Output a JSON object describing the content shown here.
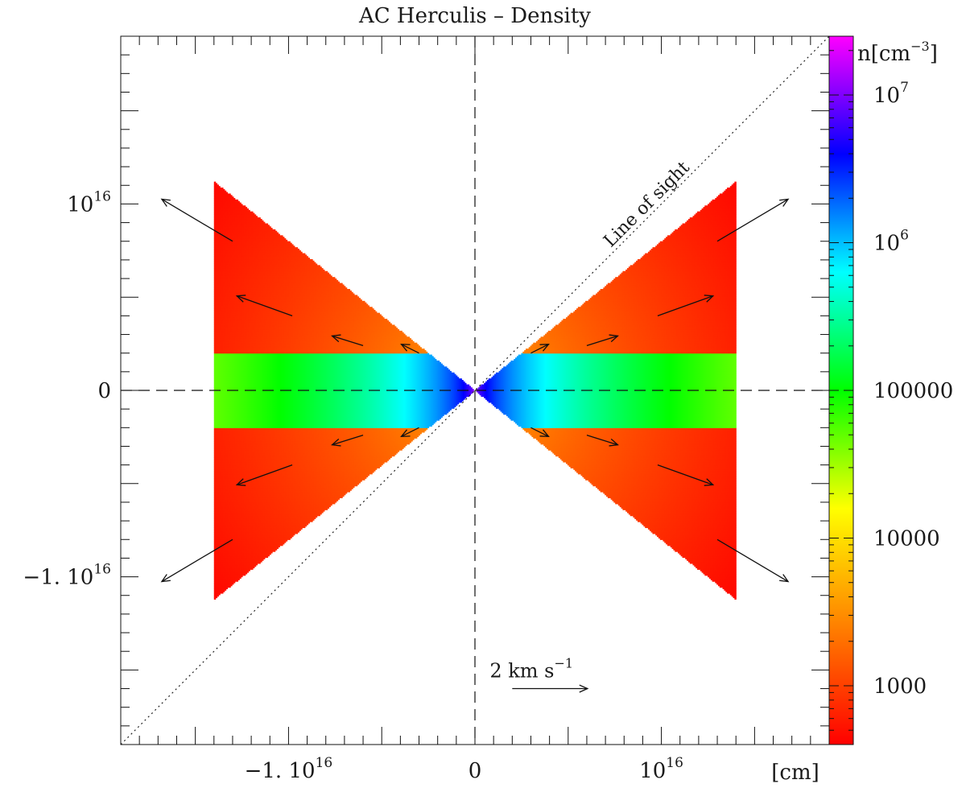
{
  "chart_data": {
    "type": "heatmap",
    "title": "AC Herculis – Density",
    "xlabel": "[cm]",
    "ylabel": "",
    "xlim": [
      -1.9e+16,
      1.9e+16
    ],
    "ylim": [
      -1.9e+16,
      1.9e+16
    ],
    "x_ticks": [
      {
        "value": -1e+16,
        "label": "−1. 10",
        "exp": "16"
      },
      {
        "value": 0,
        "label": "0",
        "exp": ""
      },
      {
        "value": 1e+16,
        "label": "10",
        "exp": "16"
      }
    ],
    "y_ticks": [
      {
        "value": 1e+16,
        "label": "10",
        "exp": "16"
      },
      {
        "value": 0,
        "label": "0",
        "exp": ""
      },
      {
        "value": -1e+16,
        "label": "−1. 10",
        "exp": "16"
      }
    ],
    "colorbar": {
      "label": "n[cm",
      "label_exp": "−3",
      "label_close": "]",
      "scale": "log",
      "range": [
        400,
        25000000.0
      ],
      "colors": [
        "#ff0000",
        "#ff8000",
        "#ffff00",
        "#00ff00",
        "#00ffff",
        "#0000ff",
        "#ff00ff"
      ],
      "ticks": [
        {
          "value": 1000,
          "label": "1000",
          "exp": ""
        },
        {
          "value": 10000,
          "label": "10000",
          "exp": ""
        },
        {
          "value": 100000,
          "label": "100000",
          "exp": ""
        },
        {
          "value": 1000000,
          "label": "10",
          "exp": "6"
        },
        {
          "value": 10000000,
          "label": "10",
          "exp": "7"
        }
      ]
    },
    "regions": {
      "outflow_cone": {
        "outer_x": 1.4e+16,
        "outer_y": 1.12e+16,
        "density_inner": 8000,
        "density_outer": 450
      },
      "disk": {
        "outer_x": 1.4e+16,
        "half_height": 2000000000000000.0,
        "density_inner": 20000000.0,
        "density_outer": 50000
      }
    },
    "velocity_arrows": [
      {
        "x": 1.3e+16,
        "y": 8000000000000000.0,
        "vx": 1.6,
        "vy": 0.95
      },
      {
        "x": 9800000000000000.0,
        "y": 4000000000000000.0,
        "vx": 1.25,
        "vy": 0.45
      },
      {
        "x": 6000000000000000.0,
        "y": 2400000000000000.0,
        "vx": 0.7,
        "vy": 0.22
      },
      {
        "x": 3000000000000000.0,
        "y": 2000000000000000.0,
        "vx": 0.4,
        "vy": 0.2
      },
      {
        "x": 9800000000000000.0,
        "y": -4000000000000000.0,
        "vx": 1.25,
        "vy": -0.45
      },
      {
        "x": 6000000000000000.0,
        "y": -2400000000000000.0,
        "vx": 0.7,
        "vy": -0.22
      },
      {
        "x": 3000000000000000.0,
        "y": -2000000000000000.0,
        "vx": 0.4,
        "vy": -0.2
      },
      {
        "x": 1.3e+16,
        "y": -8000000000000000.0,
        "vx": 1.6,
        "vy": -0.95
      }
    ],
    "line_of_sight": {
      "label": "Line of sight",
      "slope": 1
    },
    "scale_arrow": {
      "label": "2 km s",
      "exp": "−1",
      "x": 2000000000000000.0,
      "y": -1.6e+16,
      "length_kms": 2
    }
  }
}
